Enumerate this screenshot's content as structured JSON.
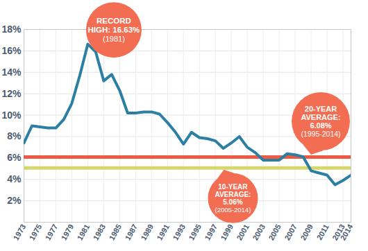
{
  "chart_data": {
    "type": "line",
    "x": [
      1973,
      1974,
      1975,
      1976,
      1977,
      1978,
      1979,
      1980,
      1981,
      1982,
      1983,
      1984,
      1985,
      1986,
      1987,
      1988,
      1989,
      1990,
      1991,
      1992,
      1993,
      1994,
      1995,
      1996,
      1997,
      1998,
      1999,
      2000,
      2001,
      2002,
      2003,
      2004,
      2005,
      2006,
      2007,
      2008,
      2009,
      2010,
      2011,
      2012,
      2013,
      2014
    ],
    "values": [
      7.4,
      9.0,
      8.9,
      8.8,
      8.8,
      9.6,
      11.1,
      13.7,
      16.63,
      15.9,
      13.2,
      13.8,
      12.3,
      10.2,
      10.2,
      10.3,
      10.3,
      10.1,
      9.3,
      8.4,
      7.3,
      8.4,
      7.9,
      7.8,
      7.6,
      6.9,
      7.4,
      8.0,
      7.0,
      6.5,
      5.8,
      5.8,
      5.8,
      6.4,
      6.3,
      6.1,
      4.8,
      4.6,
      4.4,
      3.5,
      3.9,
      4.4
    ],
    "color": "#2b7fa3",
    "xlim": [
      1973,
      2014
    ],
    "xticks": [
      1973,
      1975,
      1977,
      1979,
      1981,
      1983,
      1985,
      1987,
      1989,
      1991,
      1993,
      1995,
      1997,
      1999,
      2001,
      2003,
      2005,
      2007,
      2009,
      2011,
      2013,
      2014
    ],
    "ylim": [
      0,
      18
    ],
    "yticks": [
      {
        "value": 2,
        "label": "2%"
      },
      {
        "value": 4,
        "label": "4%"
      },
      {
        "value": 6,
        "label": "6%"
      },
      {
        "value": 8,
        "label": "8%"
      },
      {
        "value": 10,
        "label": "10%"
      },
      {
        "value": 12,
        "label": "12%"
      },
      {
        "value": 14,
        "label": "14%"
      },
      {
        "value": 16,
        "label": "16%"
      },
      {
        "value": 18,
        "label": "18%"
      }
    ],
    "grid": true,
    "annotations": [
      {
        "label_lines": [
          "RECORD",
          "HIGH: 16.63%"
        ],
        "period": "(1981)",
        "x": 1981,
        "y": 16.63
      }
    ],
    "reference_lines": [
      {
        "label_lines": [
          "20-YEAR",
          "AVERAGE:",
          "6.08%"
        ],
        "period": "(1995-2014)",
        "value": 6.08,
        "color": "#ee5b45"
      },
      {
        "label_lines": [
          "10-YEAR",
          "AVERAGE:",
          "5.06%"
        ],
        "period": "(2005-2014)",
        "value": 5.06,
        "color": "#d5d76a"
      }
    ]
  }
}
